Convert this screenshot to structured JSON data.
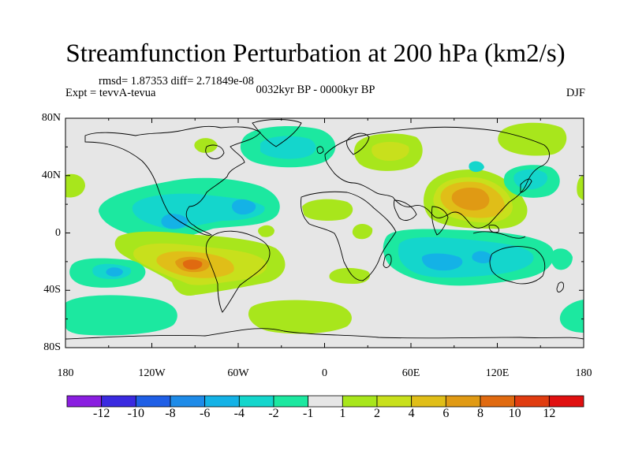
{
  "header": {
    "title": "Streamfunction Perturbation at 200 hPa (km2/s)",
    "stats": "rmsd= 1.87353  diff= 2.71849e-08",
    "experiment": "Expt = tevvA-tevua",
    "period": "0032kyr BP - 0000kyr BP",
    "season": "DJF"
  },
  "axes": {
    "x_ticks": [
      {
        "label": "180",
        "value": -180
      },
      {
        "label": "120W",
        "value": -120
      },
      {
        "label": "60W",
        "value": -60
      },
      {
        "label": "0",
        "value": 0
      },
      {
        "label": "60E",
        "value": 60
      },
      {
        "label": "120E",
        "value": 120
      },
      {
        "label": "180",
        "value": 180
      }
    ],
    "y_ticks": [
      {
        "label": "80N",
        "value": 80
      },
      {
        "label": "40N",
        "value": 40
      },
      {
        "label": "0",
        "value": 0
      },
      {
        "label": "40S",
        "value": -40
      },
      {
        "label": "80S",
        "value": -80
      }
    ],
    "lon_range": [
      -180,
      180
    ],
    "lat_range": [
      -80,
      80
    ]
  },
  "colorbar": {
    "boundaries": [
      "-12",
      "-10",
      "-8",
      "-6",
      "-4",
      "-2",
      "-1",
      "1",
      "2",
      "4",
      "6",
      "8",
      "10",
      "12"
    ],
    "colors": [
      "#8a1ee0",
      "#3a2ae0",
      "#1f5fe6",
      "#1e8be8",
      "#14b2e6",
      "#14d6cc",
      "#1ce8a0",
      "#e6e6e6",
      "#a8e61c",
      "#c8e01c",
      "#e0be18",
      "#e09a14",
      "#e06a10",
      "#e03c10",
      "#e01010"
    ]
  }
}
